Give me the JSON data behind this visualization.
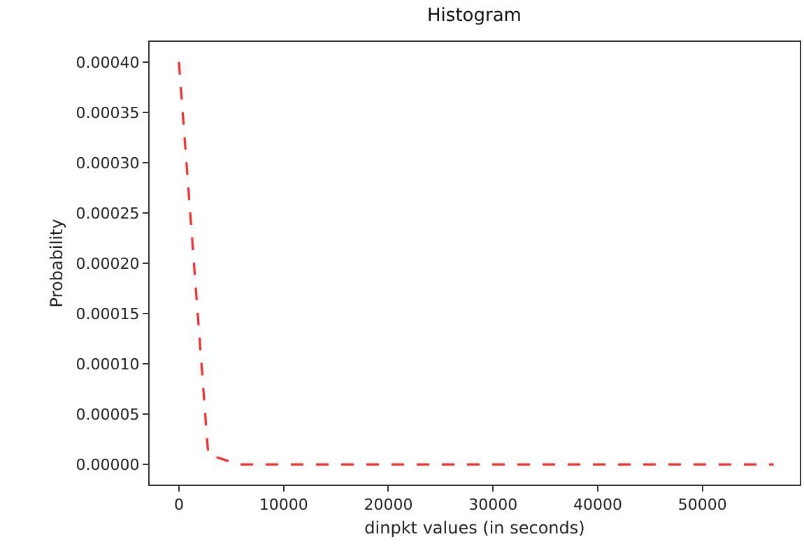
{
  "chart_data": {
    "type": "line",
    "title": "Histogram",
    "xlabel": "dinpkt values (in seconds)",
    "ylabel": "Probability",
    "x": [
      0,
      2800,
      5700,
      56800
    ],
    "series": [
      {
        "color": "#ff2a2a",
        "values": [
          0.0004,
          1e-05,
          0,
          0
        ]
      }
    ],
    "line_style": "dashed",
    "marker": "none",
    "grid": false,
    "xlim": [
      -2800,
      59300
    ],
    "xticks": [
      0,
      10000,
      20000,
      30000,
      40000,
      50000
    ],
    "ylim": [
      -2e-05,
      0.00042
    ],
    "yticks": [
      {
        "value": 0,
        "label": "0.00000"
      },
      {
        "value": 5e-05,
        "label": "0.00005"
      },
      {
        "value": 0.0001,
        "label": "0.00010"
      },
      {
        "value": 0.00015,
        "label": "0.00015"
      },
      {
        "value": 0.0002,
        "label": "0.00020"
      },
      {
        "value": 0.00025,
        "label": "0.00025"
      },
      {
        "value": 0.0003,
        "label": "0.00030"
      },
      {
        "value": 0.00035,
        "label": "0.00035"
      },
      {
        "value": 0.0004,
        "label": "0.00040"
      }
    ]
  }
}
